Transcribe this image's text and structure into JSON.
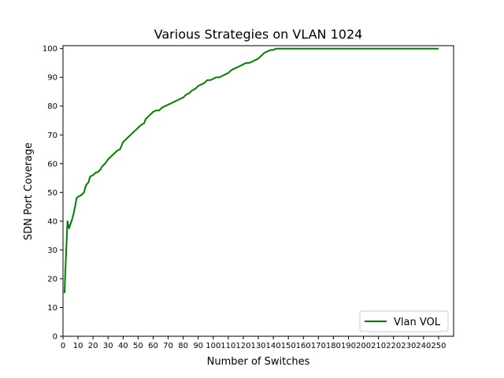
{
  "chart_data": {
    "type": "line",
    "title": "Various Strategies on VLAN 1024",
    "xlabel": "Number of Switches",
    "ylabel": "SDN Port Coverage",
    "xlim": [
      0,
      260
    ],
    "ylim": [
      0,
      101
    ],
    "xticks": [
      0,
      10,
      20,
      30,
      40,
      50,
      60,
      70,
      80,
      90,
      100,
      110,
      120,
      130,
      140,
      150,
      160,
      170,
      180,
      190,
      200,
      210,
      220,
      230,
      240,
      250
    ],
    "yticks": [
      0,
      10,
      20,
      30,
      40,
      50,
      60,
      70,
      80,
      90,
      100
    ],
    "grid": false,
    "legend_position": "lower-right",
    "series": [
      {
        "name": "Vlan VOL",
        "color": "#008000",
        "x": [
          1,
          2,
          3,
          4,
          5,
          6,
          7,
          8,
          9,
          10,
          12,
          14,
          15,
          16,
          17,
          18,
          20,
          22,
          23,
          24,
          25,
          26,
          28,
          30,
          31,
          32,
          34,
          36,
          38,
          40,
          41,
          42,
          44,
          46,
          48,
          50,
          52,
          54,
          55,
          56,
          58,
          60,
          62,
          64,
          66,
          68,
          70,
          72,
          74,
          76,
          78,
          80,
          82,
          84,
          86,
          88,
          90,
          92,
          94,
          96,
          98,
          100,
          102,
          104,
          106,
          108,
          110,
          112,
          114,
          116,
          118,
          120,
          122,
          124,
          126,
          128,
          130,
          132,
          134,
          136,
          138,
          140,
          141,
          142,
          144,
          146,
          148,
          150,
          152,
          155,
          160,
          170,
          180,
          190,
          200,
          210,
          220,
          230,
          240,
          250
        ],
        "y": [
          15,
          28,
          40,
          37.5,
          39,
          40.5,
          42.5,
          45,
          48,
          48.5,
          49,
          50,
          52,
          53,
          53.5,
          55.5,
          56,
          57,
          57,
          57.5,
          58,
          59,
          60,
          61.5,
          62,
          62.5,
          63.5,
          64.5,
          65,
          67.5,
          68,
          68.5,
          69.5,
          70.5,
          71.5,
          72.5,
          73.5,
          74,
          75.5,
          76,
          77,
          78,
          78.5,
          78.5,
          79.5,
          80,
          80.5,
          81,
          81.5,
          82,
          82.5,
          83,
          84,
          84.5,
          85.5,
          86,
          87,
          87.5,
          88,
          89,
          89,
          89.5,
          90,
          90,
          90.5,
          91,
          91.5,
          92.5,
          93,
          93.5,
          94,
          94.5,
          95,
          95,
          95.5,
          96,
          96.5,
          97.5,
          98.5,
          99,
          99.5,
          99.5,
          99.8,
          100,
          100,
          100,
          100,
          100,
          100,
          100,
          100,
          100,
          100,
          100,
          100,
          100,
          100,
          100,
          100,
          100
        ]
      }
    ]
  }
}
